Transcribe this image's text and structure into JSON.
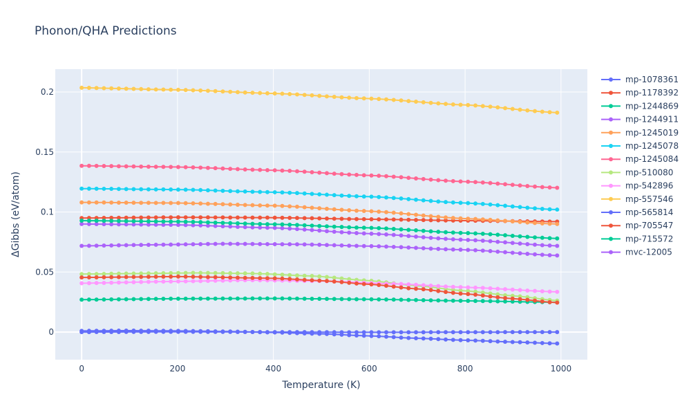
{
  "chart_data": {
    "type": "line",
    "title": "Phonon/QHA Predictions",
    "xlabel": "Temperature (K)",
    "ylabel": "ΔGibbs (eV/atom)",
    "xlim": [
      -55,
      1055
    ],
    "ylim": [
      -0.023,
      0.219
    ],
    "xticks": [
      0,
      200,
      400,
      600,
      800,
      1000
    ],
    "xtick_labels": [
      "0",
      "200",
      "400",
      "600",
      "800",
      "1000"
    ],
    "yticks": [
      0,
      0.05,
      0.1,
      0.15,
      0.2
    ],
    "ytick_labels": [
      "0",
      "0.05",
      "0.1",
      "0.15",
      "0.2"
    ],
    "grid": true,
    "legend_position": "right",
    "x_start": 0,
    "x_step": 15.5,
    "x_end": 992,
    "series": [
      {
        "name": "mp-1078361",
        "color": "#636efa",
        "anchors": [
          [
            0,
            0.001
          ],
          [
            100,
            0.0012
          ],
          [
            200,
            0.001
          ],
          [
            300,
            0.0005
          ],
          [
            400,
            -0.0003
          ],
          [
            500,
            -0.0015
          ],
          [
            600,
            -0.0032
          ],
          [
            700,
            -0.0052
          ],
          [
            800,
            -0.0068
          ],
          [
            900,
            -0.0083
          ],
          [
            992,
            -0.0095
          ]
        ]
      },
      {
        "name": "mp-1178392",
        "color": "#EF553B",
        "anchors": [
          [
            0,
            0.095
          ],
          [
            200,
            0.0956
          ],
          [
            400,
            0.0953
          ],
          [
            600,
            0.094
          ],
          [
            800,
            0.0928
          ],
          [
            992,
            0.092
          ]
        ]
      },
      {
        "name": "mp-1244869",
        "color": "#00cc96",
        "anchors": [
          [
            0,
            0.027
          ],
          [
            200,
            0.0278
          ],
          [
            400,
            0.028
          ],
          [
            600,
            0.0273
          ],
          [
            800,
            0.026
          ],
          [
            992,
            0.0248
          ]
        ]
      },
      {
        "name": "mp-1244911",
        "color": "#ab63fa",
        "anchors": [
          [
            0,
            0.09
          ],
          [
            200,
            0.0893
          ],
          [
            400,
            0.0868
          ],
          [
            600,
            0.082
          ],
          [
            800,
            0.0768
          ],
          [
            992,
            0.0718
          ]
        ]
      },
      {
        "name": "mp-1245019",
        "color": "#FFA15A",
        "anchors": [
          [
            0,
            0.108
          ],
          [
            200,
            0.1075
          ],
          [
            400,
            0.1053
          ],
          [
            600,
            0.1007
          ],
          [
            800,
            0.0945
          ],
          [
            992,
            0.09
          ]
        ]
      },
      {
        "name": "mp-1245078",
        "color": "#19d3f3",
        "anchors": [
          [
            0,
            0.1195
          ],
          [
            200,
            0.1187
          ],
          [
            400,
            0.1165
          ],
          [
            600,
            0.1128
          ],
          [
            800,
            0.1075
          ],
          [
            992,
            0.102
          ]
        ]
      },
      {
        "name": "mp-1245084",
        "color": "#FF6692",
        "anchors": [
          [
            0,
            0.1385
          ],
          [
            200,
            0.1375
          ],
          [
            400,
            0.1348
          ],
          [
            600,
            0.1305
          ],
          [
            800,
            0.1253
          ],
          [
            992,
            0.1202
          ]
        ]
      },
      {
        "name": "mp-510080",
        "color": "#B6E880",
        "anchors": [
          [
            0,
            0.0483
          ],
          [
            120,
            0.0488
          ],
          [
            240,
            0.0493
          ],
          [
            360,
            0.0488
          ],
          [
            480,
            0.0467
          ],
          [
            600,
            0.0428
          ],
          [
            700,
            0.0385
          ],
          [
            800,
            0.0343
          ],
          [
            900,
            0.0302
          ],
          [
            992,
            0.0262
          ]
        ]
      },
      {
        "name": "mp-542896",
        "color": "#FF97FF",
        "anchors": [
          [
            0,
            0.0407
          ],
          [
            200,
            0.0422
          ],
          [
            350,
            0.0432
          ],
          [
            500,
            0.0425
          ],
          [
            650,
            0.0402
          ],
          [
            800,
            0.0373
          ],
          [
            992,
            0.0335
          ]
        ]
      },
      {
        "name": "mp-557546",
        "color": "#FECB52",
        "anchors": [
          [
            0,
            0.2035
          ],
          [
            200,
            0.2018
          ],
          [
            400,
            0.1988
          ],
          [
            600,
            0.1945
          ],
          [
            800,
            0.1892
          ],
          [
            992,
            0.1828
          ]
        ]
      },
      {
        "name": "mp-565814",
        "color": "#636efa",
        "anchors": [
          [
            0,
            0.0
          ],
          [
            200,
            0.0002
          ],
          [
            400,
            0.0
          ],
          [
            600,
            -0.0002
          ],
          [
            800,
            -0.0001
          ],
          [
            992,
            0.0
          ]
        ]
      },
      {
        "name": "mp-705547",
        "color": "#EF553B",
        "anchors": [
          [
            0,
            0.0455
          ],
          [
            200,
            0.0462
          ],
          [
            400,
            0.0448
          ],
          [
            500,
            0.0428
          ],
          [
            600,
            0.0398
          ],
          [
            700,
            0.036
          ],
          [
            800,
            0.0318
          ],
          [
            900,
            0.0278
          ],
          [
            992,
            0.0245
          ]
        ]
      },
      {
        "name": "mp-715572",
        "color": "#00cc96",
        "anchors": [
          [
            0,
            0.0928
          ],
          [
            200,
            0.092
          ],
          [
            400,
            0.0898
          ],
          [
            600,
            0.0868
          ],
          [
            800,
            0.0825
          ],
          [
            992,
            0.078
          ]
        ]
      },
      {
        "name": "mvc-12005",
        "color": "#ab63fa",
        "anchors": [
          [
            0,
            0.0718
          ],
          [
            150,
            0.0727
          ],
          [
            300,
            0.0735
          ],
          [
            450,
            0.0731
          ],
          [
            600,
            0.0716
          ],
          [
            800,
            0.0685
          ],
          [
            992,
            0.0638
          ]
        ]
      }
    ]
  }
}
